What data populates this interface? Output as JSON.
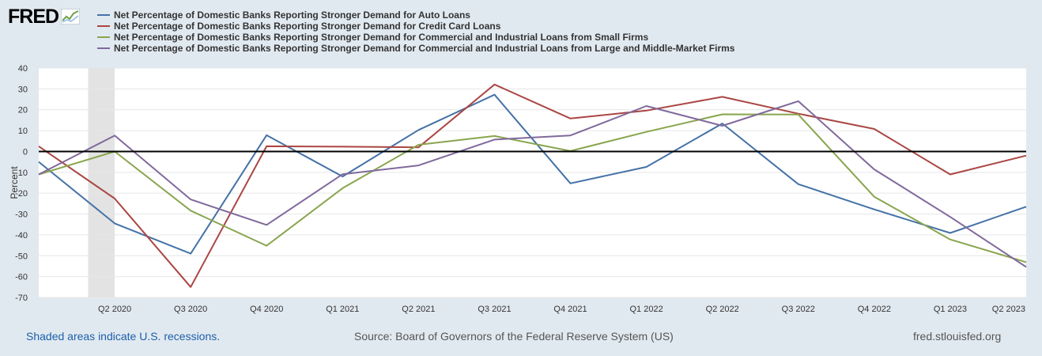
{
  "logo": {
    "text": "FRED",
    "icon": "fred-chart-logo-icon"
  },
  "colors": {
    "auto": "#4572a7",
    "credit": "#aa4643",
    "small": "#89a54e",
    "large": "#80699b",
    "recession": "#e3e3e3",
    "zero_line": "#000000"
  },
  "legend": [
    "Net Percentage of Domestic Banks Reporting Stronger Demand for Auto Loans",
    "Net Percentage of Domestic Banks Reporting Stronger Demand for Credit Card Loans",
    "Net Percentage of Domestic Banks Reporting Stronger Demand for Commercial and Industrial Loans from Small Firms",
    "Net Percentage of Domestic Banks Reporting Stronger Demand for Commercial and Industrial Loans from Large and Middle-Market Firms"
  ],
  "chart_data": {
    "type": "line",
    "ylabel": "Percent",
    "ylim": [
      -70,
      40
    ],
    "yticks": [
      40,
      30,
      20,
      10,
      0,
      -10,
      -20,
      -30,
      -40,
      -50,
      -60,
      -70
    ],
    "x": [
      "Q1 2020",
      "Q2 2020",
      "Q3 2020",
      "Q4 2020",
      "Q1 2021",
      "Q2 2021",
      "Q3 2021",
      "Q4 2021",
      "Q1 2022",
      "Q2 2022",
      "Q3 2022",
      "Q4 2022",
      "Q1 2023",
      "Q2 2023"
    ],
    "xtick_labels": [
      "Q2 2020",
      "Q3 2020",
      "Q4 2020",
      "Q1 2021",
      "Q2 2021",
      "Q3 2021",
      "Q4 2021",
      "Q1 2022",
      "Q2 2022",
      "Q3 2022",
      "Q4 2022",
      "Q1 2023",
      "Q2 2023"
    ],
    "recession": {
      "start": "Q1 2020",
      "end": "Q2 2020"
    },
    "series": [
      {
        "name": "Net Percentage of Domestic Banks Reporting Stronger Demand for Auto Loans",
        "color_key": "auto",
        "values": [
          -5,
          -34.5,
          -49,
          7.8,
          -12,
          10.3,
          27.2,
          -15.3,
          -7.4,
          13.4,
          -15.7,
          -27.8,
          -39.1,
          -26.5
        ]
      },
      {
        "name": "Net Percentage of Domestic Banks Reporting Stronger Demand for Credit Card Loans",
        "color_key": "credit",
        "values": [
          2.5,
          -22.6,
          -65,
          2.5,
          2.3,
          2,
          32.1,
          15.8,
          19.6,
          26.2,
          18.1,
          10.8,
          -11,
          -2
        ]
      },
      {
        "name": "Net Percentage of Domestic Banks Reporting Stronger Demand for Commercial and Industrial Loans from Small Firms",
        "color_key": "small",
        "values": [
          -11,
          0,
          -28.4,
          -45.2,
          -17.6,
          3.2,
          7.4,
          0.2,
          9.4,
          17.8,
          17.7,
          -21.7,
          -42.2,
          -53.1
        ]
      },
      {
        "name": "Net Percentage of Domestic Banks Reporting Stronger Demand for Commercial and Industrial Loans from Large and Middle-Market Firms",
        "color_key": "large",
        "values": [
          -11,
          7.6,
          -23,
          -35.2,
          -10.9,
          -6.7,
          5.7,
          7.7,
          21.8,
          12.3,
          24.1,
          -8.6,
          -31.4,
          -55.4
        ]
      }
    ]
  },
  "footer": {
    "recession_note": "Shaded areas indicate U.S. recessions.",
    "source": "Source: Board of Governors of the Federal Reserve System (US)",
    "site": "fred.stlouisfed.org"
  }
}
